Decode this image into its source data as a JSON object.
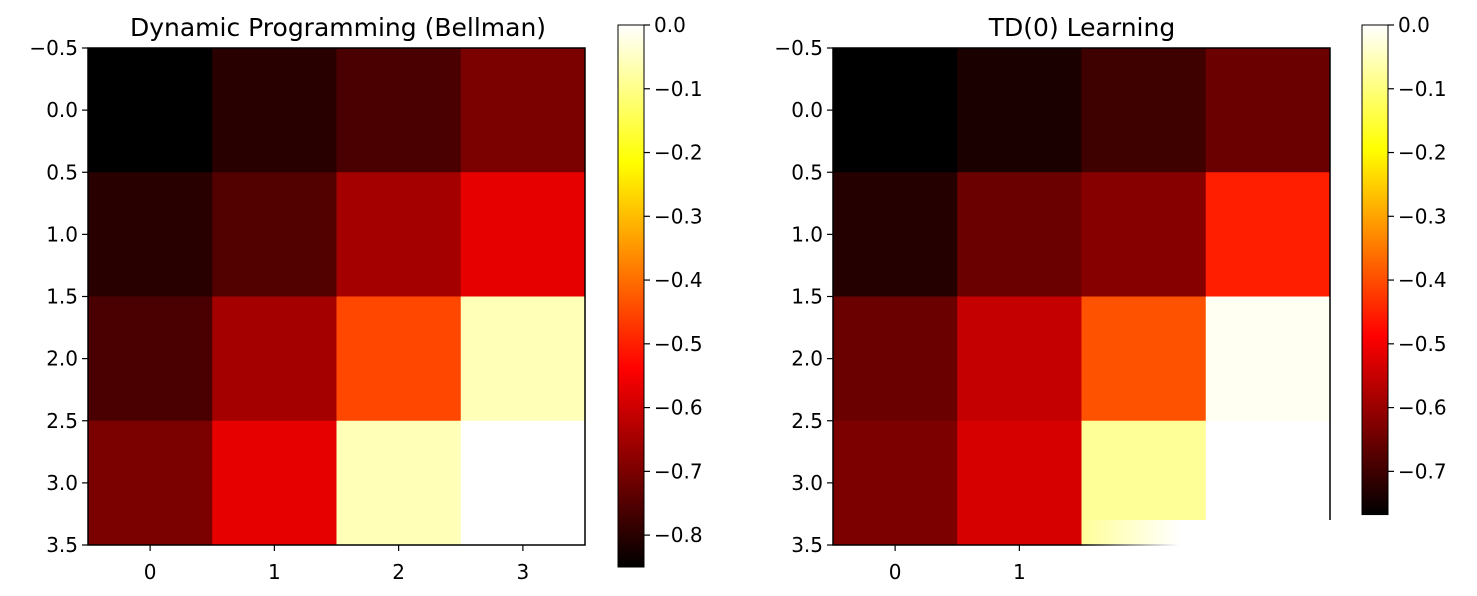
{
  "chart_data": [
    {
      "type": "heatmap",
      "title": "Dynamic Programming (Bellman)",
      "xlabel": "",
      "ylabel": "",
      "colormap": "hot",
      "vmin": -0.85,
      "vmax": 0.0,
      "xlim": [
        -0.5,
        3.5
      ],
      "ylim": [
        3.5,
        -0.5
      ],
      "x_ticks": [
        "0",
        "1",
        "2",
        "3"
      ],
      "y_ticks": [
        "−0.5",
        "0.0",
        "0.5",
        "1.0",
        "1.5",
        "2.0",
        "2.5",
        "3.0",
        "3.5"
      ],
      "colorbar_ticks": [
        "0.0",
        "−0.1",
        "−0.2",
        "−0.3",
        "−0.4",
        "−0.5",
        "−0.6",
        "−0.7",
        "−0.8"
      ],
      "values": [
        [
          -0.85,
          -0.8,
          -0.76,
          -0.7
        ],
        [
          -0.8,
          -0.75,
          -0.65,
          -0.57
        ],
        [
          -0.76,
          -0.65,
          -0.45,
          -0.06
        ],
        [
          -0.7,
          -0.57,
          -0.06,
          0.0
        ]
      ]
    },
    {
      "type": "heatmap",
      "title": "TD(0) Learning",
      "xlabel": "",
      "ylabel": "",
      "colormap": "hot",
      "vmin": -0.78,
      "vmax": 0.0,
      "xlim": [
        -0.5,
        3.5
      ],
      "ylim": [
        3.5,
        -0.5
      ],
      "x_ticks": [
        "0",
        "1"
      ],
      "y_ticks": [
        "−0.5",
        "0.0",
        "0.5",
        "1.0",
        "1.5",
        "2.0",
        "2.5",
        "3.0",
        "3.5"
      ],
      "colorbar_ticks": [
        "0.0",
        "−0.1",
        "−0.2",
        "−0.3",
        "−0.4",
        "−0.5",
        "−0.6",
        "−0.7"
      ],
      "values": [
        [
          -0.78,
          -0.75,
          -0.71,
          -0.66
        ],
        [
          -0.74,
          -0.66,
          -0.63,
          -0.46
        ],
        [
          -0.66,
          -0.56,
          -0.4,
          -0.01
        ],
        [
          -0.64,
          -0.54,
          -0.08,
          0.0
        ]
      ]
    }
  ]
}
